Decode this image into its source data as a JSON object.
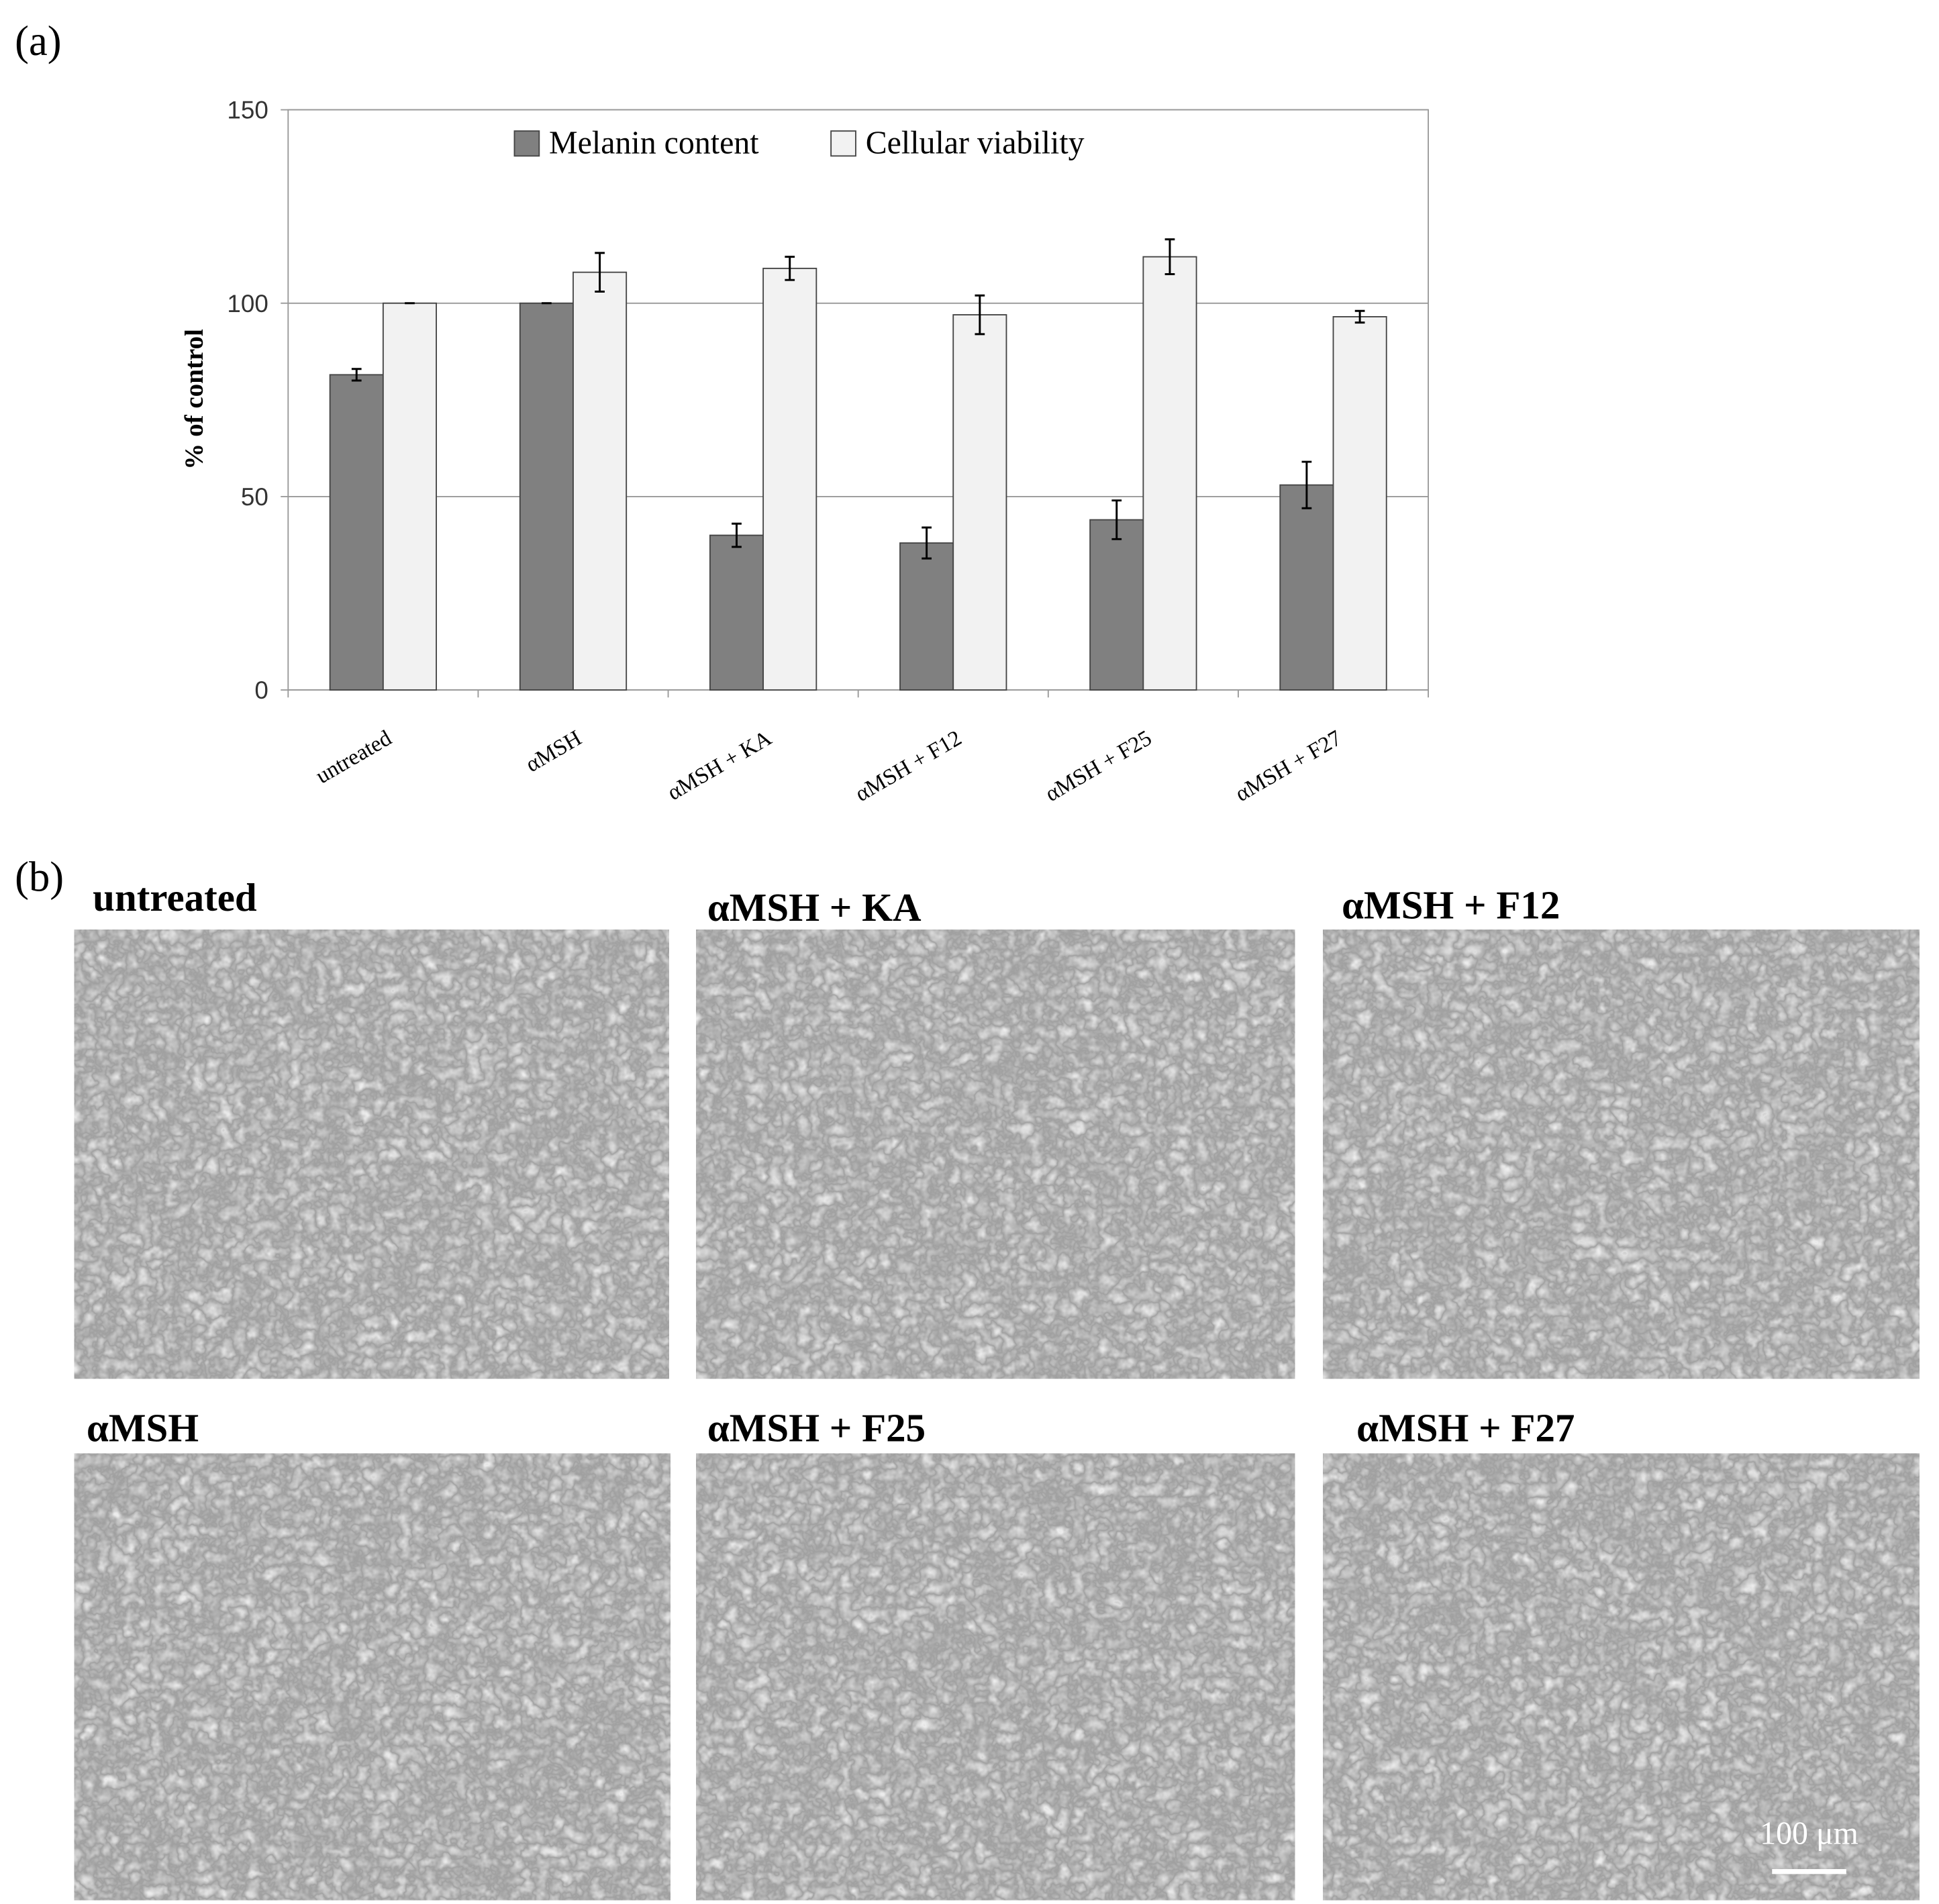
{
  "panel_labels": {
    "a": "(a)",
    "b": "(b)"
  },
  "chart_data": {
    "type": "bar",
    "y_label": "% of control",
    "categories": [
      "untreated",
      "αMSH",
      "αMSH + KA",
      "αMSH + F12",
      "αMSH + F25",
      "αMSH + F27"
    ],
    "series": [
      {
        "name": "Melanin content",
        "color": "#808080",
        "values": [
          81.5,
          100,
          40,
          38,
          44,
          53
        ],
        "errors": [
          1.5,
          0,
          3,
          4,
          5,
          6
        ]
      },
      {
        "name": "Cellular viability",
        "color": "#f2f2f2",
        "values": [
          100,
          108,
          109,
          97,
          112,
          96.5
        ],
        "errors": [
          0,
          5,
          3,
          5,
          4.5,
          1.5
        ]
      }
    ],
    "ylim": [
      0,
      150
    ],
    "yticks": [
      0,
      50,
      100,
      150
    ],
    "grid": true,
    "legend": "top"
  },
  "images": [
    {
      "title": "untreated"
    },
    {
      "title": "αMSH + KA"
    },
    {
      "title": "αMSH + F12"
    },
    {
      "title": "αMSH"
    },
    {
      "title": "αMSH + F25"
    },
    {
      "title": "αMSH + F27"
    }
  ],
  "scale_bar": "100 μm"
}
